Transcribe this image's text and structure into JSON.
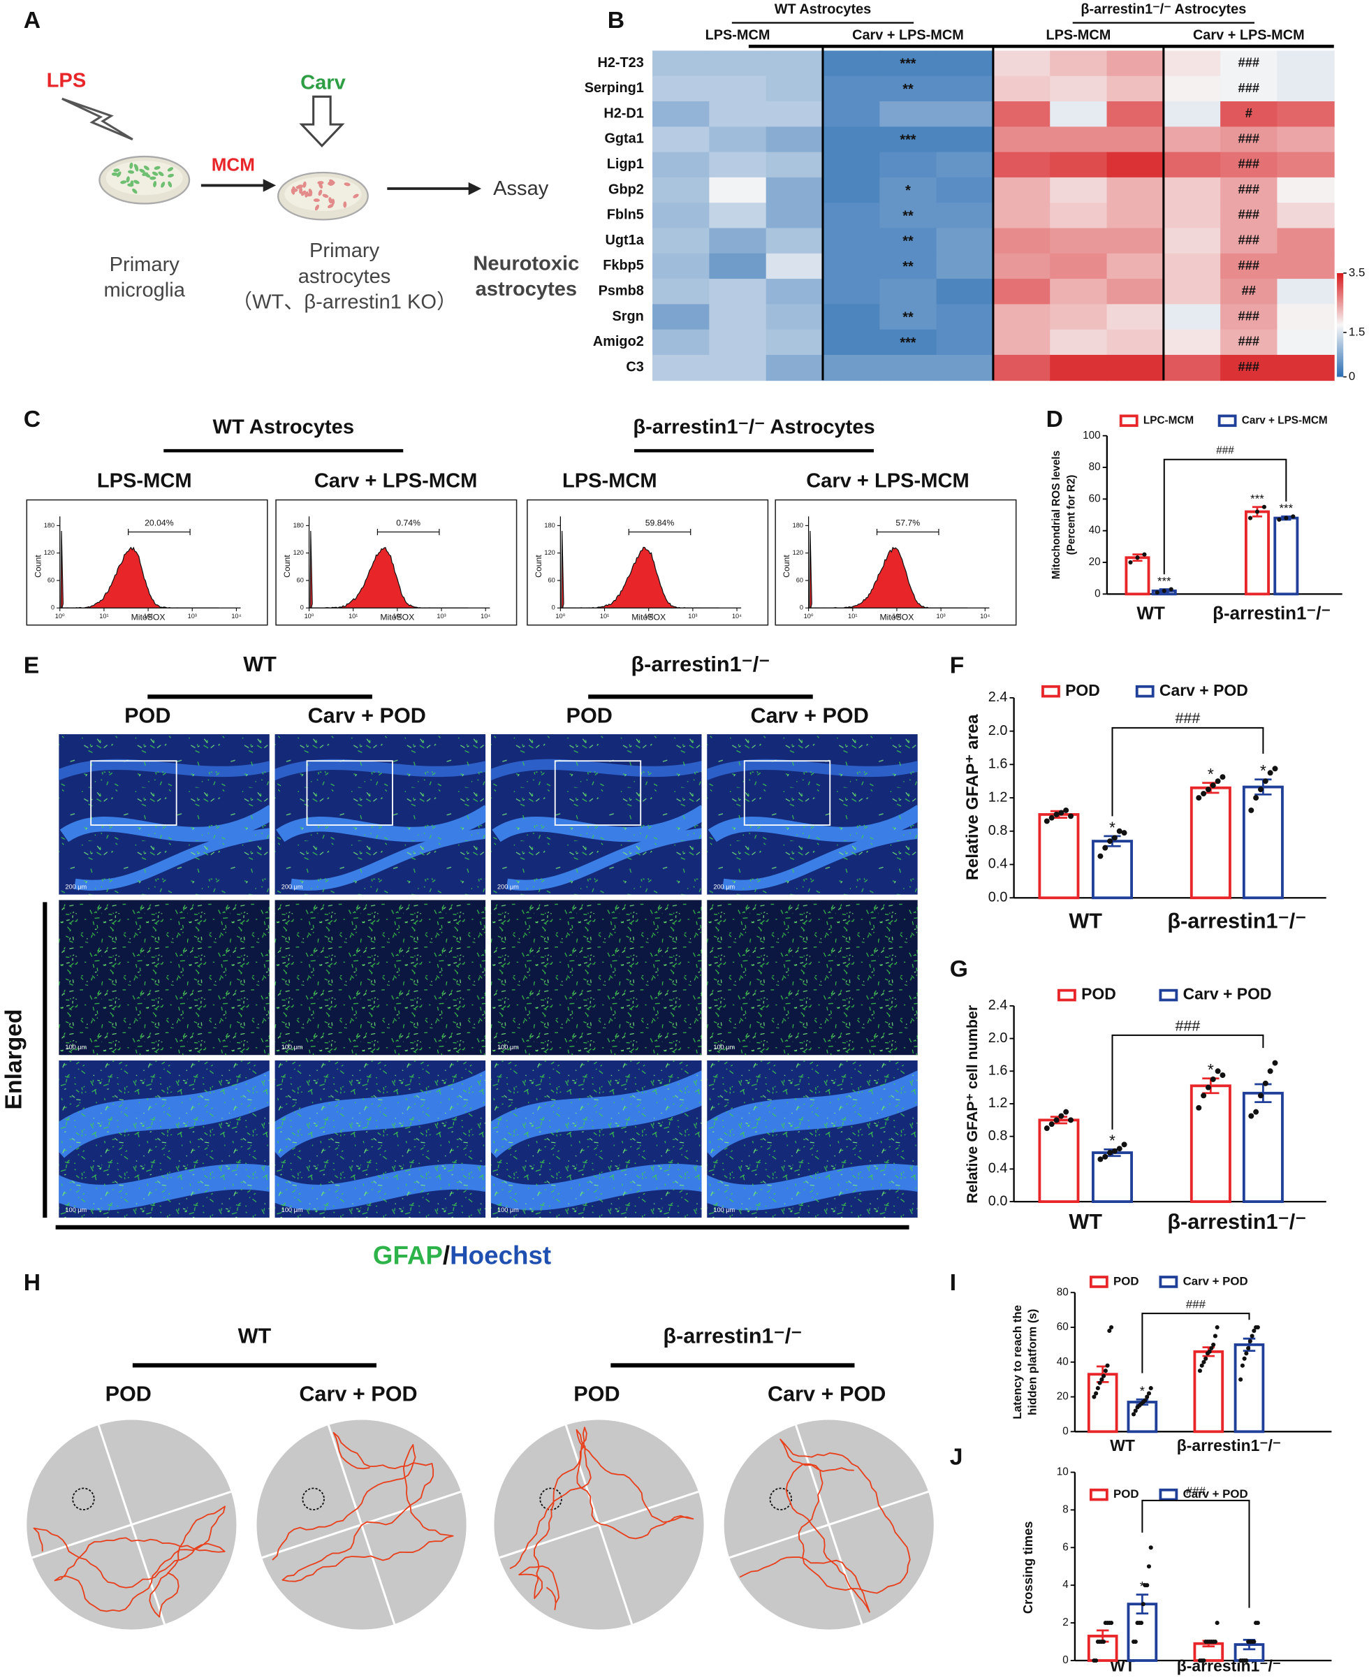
{
  "letters": [
    "A",
    "B",
    "C",
    "D",
    "E",
    "F",
    "G",
    "H",
    "I",
    "J"
  ],
  "panel_a": {
    "lps": "LPS",
    "carv": "Carv",
    "mcm": "MCM",
    "assay": "Assay",
    "microglia": [
      "Primary",
      "microglia"
    ],
    "astrocytes": [
      "Primary",
      "astrocytes",
      "（WT、β-arrestin1 KO）"
    ],
    "result": [
      "Neurotoxic",
      "astrocytes"
    ]
  },
  "panel_c": {
    "groups": [
      "WT Astrocytes",
      "β-arrestin1⁻/⁻ Astrocytes"
    ],
    "plots": [
      {
        "condition": "LPS-MCM",
        "gate": "20.04%"
      },
      {
        "condition": "Carv + LPS-MCM",
        "gate": "0.74%"
      },
      {
        "condition": "LPS-MCM",
        "gate": "59.84%"
      },
      {
        "condition": "Carv + LPS-MCM",
        "gate": "57.7%"
      }
    ],
    "ylabel": "Count",
    "xlabel": "MitoSOX",
    "ylim": [
      0,
      200
    ],
    "yticks": [
      0,
      60,
      120,
      180
    ],
    "log_x": true,
    "xlim": [
      1,
      10000
    ],
    "xticks": [
      {
        "value": 1,
        "label": "10⁰"
      },
      {
        "value": 10,
        "label": "10¹"
      },
      {
        "value": 100,
        "label": "10²"
      },
      {
        "value": 1000,
        "label": "10³"
      },
      {
        "value": 10000,
        "label": "10⁴"
      }
    ]
  },
  "panel_e": {
    "groups": [
      "WT",
      "β-arrestin1⁻/⁻"
    ],
    "conditions": [
      "POD",
      "Carv + POD",
      "POD",
      "Carv + POD"
    ],
    "row_label": "Enlarged",
    "scale_bars": [
      "200 μm",
      "100 μm",
      "100 μm"
    ],
    "stain": [
      "GFAP",
      "/",
      "Hoechst"
    ]
  },
  "panel_h": {
    "groups": [
      "WT",
      "β-arrestin1⁻/⁻"
    ],
    "conditions": [
      "POD",
      "Carv + POD",
      "POD",
      "Carv + POD"
    ]
  },
  "chart_data": [
    {
      "type": "heatmap",
      "groups": [
        "WT Astrocytes",
        "β-arrestin1⁻/⁻ Astrocytes"
      ],
      "conditions": [
        "LPS-MCM",
        "Carv + LPS-MCM",
        "LPS-MCM",
        "Carv + LPS-MCM"
      ],
      "rows": [
        "H2-T23",
        "Serping1",
        "H2-D1",
        "Ggta1",
        "Ligp1",
        "Gbp2",
        "Fbln5",
        "Ugt1a",
        "Fkbp5",
        "Psmb8",
        "Srgn",
        "Amigo2",
        "C3"
      ],
      "values": [
        [
          1.1,
          1.1,
          1.1,
          0.3,
          0.3,
          0.3,
          2.0,
          2.2,
          2.4,
          1.9,
          1.7,
          1.6
        ],
        [
          1.2,
          1.2,
          1.1,
          0.4,
          0.4,
          0.4,
          2.1,
          2.0,
          2.2,
          1.8,
          1.7,
          1.6
        ],
        [
          0.9,
          1.2,
          1.2,
          0.4,
          0.7,
          0.7,
          2.9,
          1.6,
          2.9,
          1.6,
          3.0,
          2.9
        ],
        [
          1.2,
          1.0,
          0.8,
          0.3,
          0.3,
          0.3,
          2.6,
          2.6,
          2.6,
          2.4,
          2.5,
          2.4
        ],
        [
          1.0,
          1.2,
          1.1,
          0.3,
          0.4,
          0.5,
          3.0,
          3.1,
          3.3,
          2.9,
          2.8,
          2.7
        ],
        [
          1.1,
          1.7,
          0.8,
          0.3,
          0.5,
          0.4,
          2.3,
          2.0,
          2.3,
          2.1,
          2.4,
          1.8
        ],
        [
          1.0,
          1.3,
          0.8,
          0.4,
          0.5,
          0.5,
          2.3,
          2.1,
          2.3,
          2.1,
          2.4,
          2.0
        ],
        [
          1.1,
          0.8,
          1.1,
          0.4,
          0.4,
          0.6,
          2.6,
          2.5,
          2.5,
          2.0,
          2.4,
          2.6
        ],
        [
          1.0,
          0.6,
          1.5,
          0.4,
          0.4,
          0.6,
          2.5,
          2.6,
          2.3,
          2.1,
          2.6,
          2.6
        ],
        [
          1.1,
          1.2,
          0.9,
          0.4,
          0.5,
          0.3,
          2.8,
          2.3,
          2.5,
          2.1,
          2.5,
          1.6
        ],
        [
          0.7,
          1.2,
          1.0,
          0.3,
          0.5,
          0.4,
          2.3,
          2.2,
          2.0,
          1.6,
          2.4,
          1.8
        ],
        [
          1.0,
          1.2,
          1.1,
          0.3,
          0.3,
          0.4,
          2.3,
          2.0,
          2.1,
          1.9,
          2.3,
          1.7
        ],
        [
          1.2,
          1.2,
          0.8,
          0.6,
          0.6,
          0.6,
          3.0,
          3.3,
          3.3,
          3.0,
          3.3,
          3.3
        ]
      ],
      "stars": [
        "***",
        "**",
        null,
        "***",
        null,
        "*",
        "**",
        "**",
        "**",
        null,
        "**",
        "***",
        null
      ],
      "hashes": [
        "###",
        "###",
        "#",
        "###",
        "###",
        "###",
        "###",
        "###",
        "###",
        "##",
        "###",
        "###",
        "###"
      ],
      "zlim": [
        0,
        3.5
      ],
      "zticks": [
        0,
        1.5,
        3.5
      ],
      "colors": [
        "#2a6db3",
        "#f7f7f7",
        "#d7191c"
      ]
    },
    {
      "type": "bar",
      "ylabel": [
        "Mitochondrial ROS levels",
        "(Percent for R2)"
      ],
      "categories": [
        "WT",
        "β-arrestin1⁻/⁻"
      ],
      "series": [
        {
          "name": "LPC-MCM",
          "color": "#e8262a",
          "values": [
            23,
            52
          ],
          "errors": [
            2,
            3
          ],
          "points": [
            [
              20,
              23,
              25
            ],
            [
              48,
              52,
              55
            ]
          ],
          "stars": [
            null,
            "***"
          ]
        },
        {
          "name": "Carv + LPS-MCM",
          "color": "#1f3f99",
          "values": [
            2,
            48
          ],
          "errors": [
            1,
            1
          ],
          "points": [
            [
              1,
              2,
              3
            ],
            [
              47,
              48,
              49
            ]
          ],
          "stars": [
            "***",
            "***"
          ]
        }
      ],
      "ylim": [
        0,
        100
      ],
      "yticks": [
        0,
        20,
        40,
        60,
        80,
        100
      ],
      "bracket": "###"
    },
    {
      "type": "bar",
      "ylabel": [
        "Relative GFAP⁺ area"
      ],
      "categories": [
        "WT",
        "β-arrestin1⁻/⁻"
      ],
      "series": [
        {
          "name": "POD",
          "color": "#e8262a",
          "values": [
            1.0,
            1.32
          ],
          "errors": [
            0.04,
            0.06
          ],
          "points": [
            [
              0.92,
              0.96,
              1.0,
              1.02,
              1.05,
              0.98
            ],
            [
              1.2,
              1.25,
              1.3,
              1.35,
              1.4,
              1.45
            ]
          ],
          "stars": [
            null,
            "*"
          ]
        },
        {
          "name": "Carv + POD",
          "color": "#1f3f99",
          "values": [
            0.68,
            1.33
          ],
          "errors": [
            0.06,
            0.09
          ],
          "points": [
            [
              0.5,
              0.6,
              0.68,
              0.72,
              0.8,
              0.78
            ],
            [
              1.05,
              1.2,
              1.3,
              1.4,
              1.5,
              1.55
            ]
          ],
          "stars": [
            "*",
            "*"
          ]
        }
      ],
      "ylim": [
        0,
        2.4
      ],
      "yticks": [
        {
          "value": 0,
          "label": "0.0"
        },
        0.4,
        0.8,
        1.2,
        1.6,
        {
          "value": 2,
          "label": "2.0"
        },
        2.4
      ],
      "bracket": "###"
    },
    {
      "type": "bar",
      "ylabel": [
        "Relative GFAP⁺ cell number"
      ],
      "categories": [
        "WT",
        "β-arrestin1⁻/⁻"
      ],
      "series": [
        {
          "name": "POD",
          "color": "#e8262a",
          "values": [
            1.0,
            1.42
          ],
          "errors": [
            0.04,
            0.09
          ],
          "points": [
            [
              0.9,
              0.95,
              1.0,
              1.05,
              1.1,
              1.0
            ],
            [
              1.15,
              1.3,
              1.4,
              1.5,
              1.6,
              1.55
            ]
          ],
          "stars": [
            null,
            "*"
          ]
        },
        {
          "name": "Carv + POD",
          "color": "#1f3f99",
          "values": [
            0.6,
            1.33
          ],
          "errors": [
            0.04,
            0.11
          ],
          "points": [
            [
              0.52,
              0.55,
              0.6,
              0.62,
              0.65,
              0.7
            ],
            [
              1.05,
              1.1,
              1.3,
              1.45,
              1.6,
              1.7
            ]
          ],
          "stars": [
            "*",
            null
          ]
        }
      ],
      "ylim": [
        0,
        2.4
      ],
      "yticks": [
        {
          "value": 0,
          "label": "0.0"
        },
        0.4,
        0.8,
        1.2,
        1.6,
        {
          "value": 2,
          "label": "2.0"
        },
        2.4
      ],
      "bracket": "###"
    },
    {
      "type": "bar",
      "ylabel": [
        "Latency to reach the",
        "hidden platform (s)"
      ],
      "categories": [
        "WT",
        "β-arrestin1⁻/⁻"
      ],
      "series": [
        {
          "name": "POD",
          "color": "#e8262a",
          "values": [
            33,
            46
          ],
          "errors": [
            4.5,
            2.5
          ],
          "points": [
            [
              20,
              22,
              25,
              28,
              30,
              32,
              35,
              38,
              58,
              60
            ],
            [
              35,
              38,
              40,
              42,
              45,
              46,
              48,
              50,
              55,
              60
            ]
          ],
          "stars": [
            null,
            null
          ]
        },
        {
          "name": "Carv + POD",
          "color": "#1f3f99",
          "values": [
            17,
            50
          ],
          "errors": [
            1.5,
            3.5
          ],
          "points": [
            [
              10,
              12,
              14,
              15,
              16,
              17,
              18,
              20,
              22,
              25
            ],
            [
              30,
              38,
              42,
              45,
              48,
              52,
              55,
              58,
              60,
              60
            ]
          ],
          "stars": [
            "*",
            null
          ]
        }
      ],
      "ylim": [
        0,
        80
      ],
      "yticks": [
        0,
        20,
        40,
        60,
        80
      ],
      "bracket": "###"
    },
    {
      "type": "bar",
      "ylabel": [
        "Crossing times"
      ],
      "categories": [
        "WT",
        "β-arrestin1⁻/⁻"
      ],
      "series": [
        {
          "name": "POD",
          "color": "#e8262a",
          "values": [
            1.3,
            0.9
          ],
          "errors": [
            0.3,
            0.15
          ],
          "points": [
            [
              0,
              0,
              1,
              1,
              1,
              1,
              2,
              2,
              2,
              2
            ],
            [
              0,
              0,
              0,
              1,
              1,
              1,
              1,
              1,
              1,
              2
            ]
          ],
          "stars": [
            null,
            null
          ]
        },
        {
          "name": "Carv + POD",
          "color": "#1f3f99",
          "values": [
            3.0,
            0.85
          ],
          "errors": [
            0.5,
            0.25
          ],
          "points": [
            [
              1,
              1,
              2,
              2,
              2,
              3,
              4,
              4,
              5,
              6
            ],
            [
              0,
              0,
              0,
              0,
              1,
              1,
              1,
              1,
              2,
              2
            ]
          ],
          "stars": [
            "*",
            null
          ]
        }
      ],
      "ylim": [
        0,
        10
      ],
      "yticks": [
        0,
        2,
        4,
        6,
        8,
        10
      ],
      "bracket": "###"
    }
  ]
}
